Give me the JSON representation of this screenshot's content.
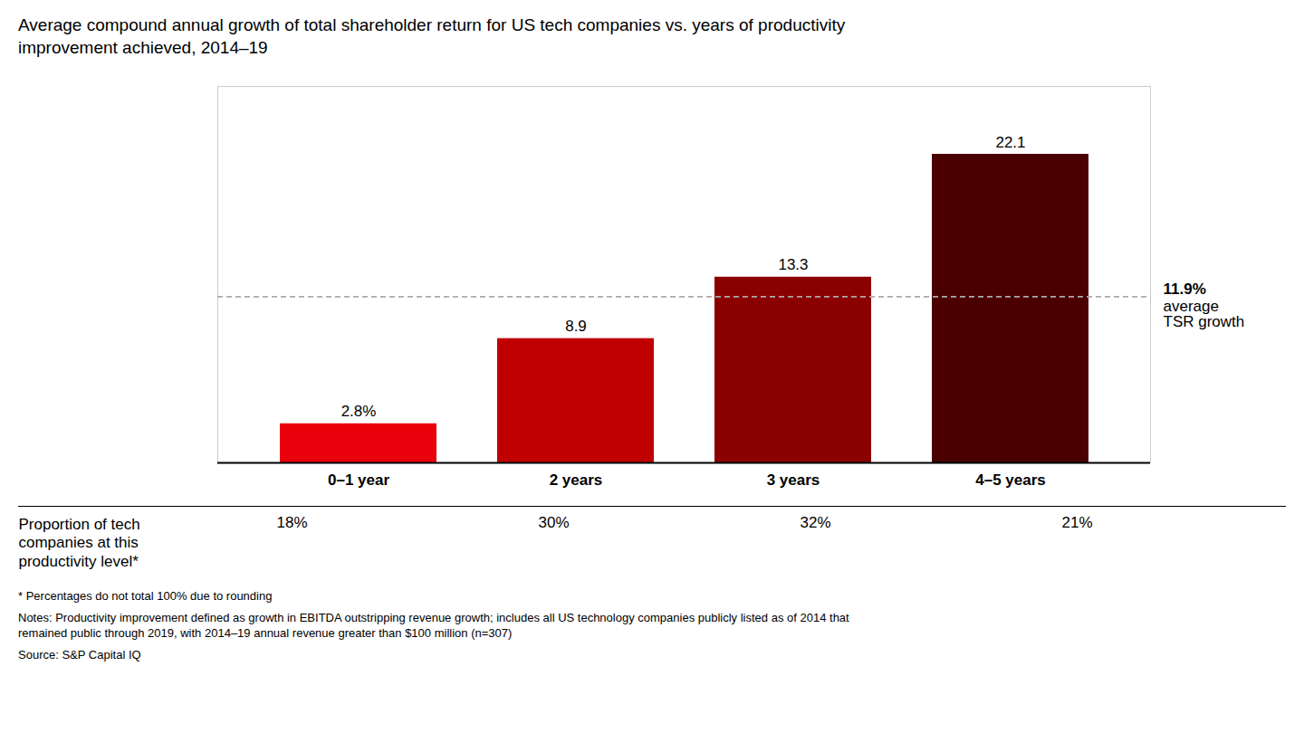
{
  "chart_data": {
    "type": "bar",
    "title": "Average compound annual growth of total shareholder return for US tech companies vs. years of productivity\nimprovement achieved, 2014–19",
    "categories": [
      "0–1 year",
      "2 years",
      "3 years",
      "4–5 years"
    ],
    "values": [
      2.8,
      8.9,
      13.3,
      22.1
    ],
    "value_labels": [
      "2.8%",
      "8.9",
      "13.3",
      "22.1"
    ],
    "colors": [
      "#e8000a",
      "#c00000",
      "#8b0000",
      "#4a0000"
    ],
    "data_labels": true,
    "ylim": [
      0,
      26.962
    ],
    "tick_labels": "x",
    "grid": false,
    "average_line": {
      "value": 11.9,
      "label": [
        "11.9%",
        "average",
        "TSR growth"
      ],
      "line_style": "dashed"
    },
    "proportions": {
      "label": "Proportion of tech\ncompanies at this\nproductivity level*",
      "values": [
        18,
        30,
        32,
        21
      ],
      "value_labels": [
        "18%",
        "30%",
        "32%",
        "21%"
      ]
    },
    "footnotes": [
      "* Percentages do not total 100% due to rounding",
      "Notes: Productivity improvement defined as growth in EBITDA outstripping revenue growth; includes all US technology companies publicly listed as of 2014 that\nremained public through 2019, with 2014–19 annual revenue greater than $100 million (n=307)",
      "Source: S&P Capital IQ"
    ]
  }
}
